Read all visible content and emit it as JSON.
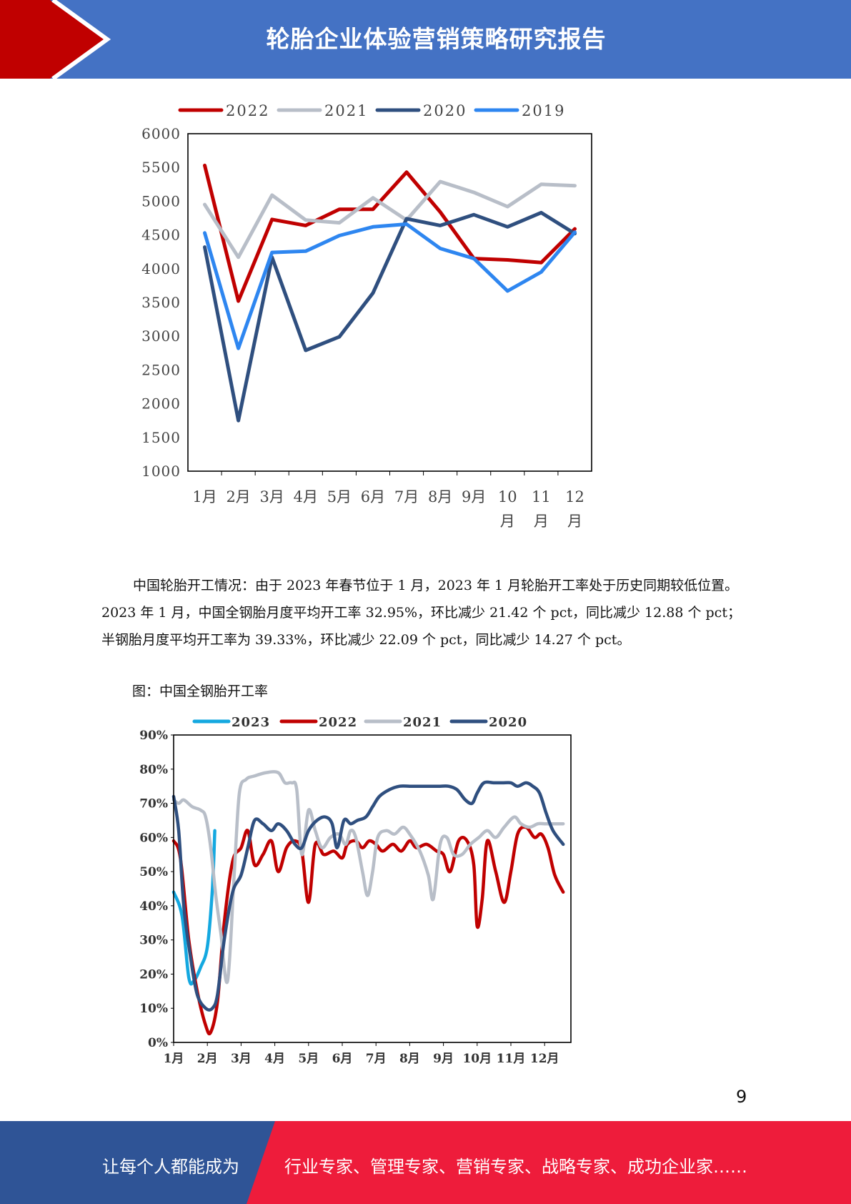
{
  "header": {
    "title": "轮胎企业体验营销策略研究报告"
  },
  "chart_data": [
    {
      "type": "line",
      "categories": [
        "1月",
        "2月",
        "3月",
        "4月",
        "5月",
        "6月",
        "7月",
        "8月",
        "9月",
        "10月",
        "11月",
        "12月"
      ],
      "ylim": [
        1000,
        6000
      ],
      "yticks": [
        "6000",
        "5500",
        "5000",
        "4500",
        "4000",
        "3500",
        "3000",
        "2500",
        "2000",
        "1500",
        "1000"
      ],
      "legend_position": "top",
      "series": [
        {
          "name": "2022",
          "color": "#c00000",
          "values": [
            5530,
            3520,
            4730,
            4640,
            4880,
            4880,
            5430,
            4840,
            4150,
            4130,
            4090,
            4590
          ]
        },
        {
          "name": "2021",
          "color": "#b8bec8",
          "values": [
            4950,
            4170,
            5090,
            4720,
            4680,
            5050,
            4720,
            5290,
            5130,
            4920,
            5250,
            5230
          ]
        },
        {
          "name": "2020",
          "color": "#2f4f7f",
          "values": [
            4320,
            1750,
            4170,
            2790,
            2990,
            3640,
            4740,
            4640,
            4800,
            4620,
            4830,
            4520
          ]
        },
        {
          "name": "2019",
          "color": "#2e86f0",
          "values": [
            4530,
            2820,
            4240,
            4260,
            4490,
            4620,
            4660,
            4300,
            4150,
            3670,
            3950,
            4540
          ]
        }
      ]
    },
    {
      "type": "line",
      "categories": [
        "1月",
        "2月",
        "3月",
        "4月",
        "5月",
        "6月",
        "7月",
        "8月",
        "9月",
        "10月",
        "11月",
        "12月"
      ],
      "ylim": [
        0,
        90
      ],
      "yticks": [
        "90%",
        "80%",
        "70%",
        "60%",
        "50%",
        "40%",
        "30%",
        "20%",
        "10%",
        "0%"
      ],
      "legend_position": "top",
      "series": [
        {
          "name": "2023",
          "color": "#14a8e0",
          "points": [
            [
              0,
              44
            ],
            [
              0.25,
              37
            ],
            [
              0.45,
              19
            ],
            [
              0.6,
              18
            ],
            [
              0.8,
              22
            ],
            [
              1.0,
              28
            ],
            [
              1.15,
              45
            ],
            [
              1.22,
              62
            ]
          ]
        },
        {
          "name": "2022",
          "color": "#c00000",
          "points": [
            [
              0,
              59
            ],
            [
              0.2,
              54
            ],
            [
              0.45,
              30
            ],
            [
              0.7,
              15
            ],
            [
              0.95,
              5
            ],
            [
              1.1,
              3
            ],
            [
              1.3,
              12
            ],
            [
              1.5,
              35
            ],
            [
              1.75,
              53
            ],
            [
              2.0,
              57
            ],
            [
              2.2,
              62
            ],
            [
              2.4,
              52
            ],
            [
              2.65,
              55
            ],
            [
              2.9,
              59
            ],
            [
              3.1,
              50
            ],
            [
              3.35,
              57
            ],
            [
              3.6,
              59
            ],
            [
              3.8,
              56
            ],
            [
              4.0,
              41
            ],
            [
              4.2,
              58
            ],
            [
              4.45,
              55
            ],
            [
              4.75,
              56
            ],
            [
              5.0,
              54
            ],
            [
              5.15,
              58
            ],
            [
              5.4,
              59
            ],
            [
              5.6,
              57
            ],
            [
              5.8,
              59
            ],
            [
              6.0,
              58
            ],
            [
              6.2,
              56
            ],
            [
              6.5,
              58
            ],
            [
              6.75,
              56
            ],
            [
              7.0,
              59
            ],
            [
              7.2,
              57
            ],
            [
              7.5,
              58
            ],
            [
              7.8,
              56
            ],
            [
              8.0,
              55
            ],
            [
              8.2,
              50
            ],
            [
              8.45,
              59
            ],
            [
              8.7,
              59
            ],
            [
              8.9,
              52
            ],
            [
              9.0,
              34
            ],
            [
              9.15,
              42
            ],
            [
              9.3,
              59
            ],
            [
              9.55,
              50
            ],
            [
              9.8,
              41
            ],
            [
              10.0,
              50
            ],
            [
              10.2,
              61
            ],
            [
              10.45,
              63
            ],
            [
              10.7,
              60
            ],
            [
              10.9,
              61
            ],
            [
              11.1,
              57
            ],
            [
              11.3,
              49
            ],
            [
              11.55,
              44
            ]
          ]
        },
        {
          "name": "2021",
          "color": "#b8bec8",
          "points": [
            [
              0,
              71
            ],
            [
              0.15,
              70
            ],
            [
              0.3,
              71
            ],
            [
              0.55,
              69
            ],
            [
              0.8,
              68
            ],
            [
              0.95,
              66
            ],
            [
              1.1,
              57
            ],
            [
              1.25,
              43
            ],
            [
              1.4,
              32
            ],
            [
              1.6,
              18
            ],
            [
              1.8,
              50
            ],
            [
              1.95,
              73
            ],
            [
              2.15,
              77
            ],
            [
              2.4,
              78
            ],
            [
              2.75,
              79
            ],
            [
              3.1,
              79
            ],
            [
              3.3,
              76
            ],
            [
              3.5,
              76
            ],
            [
              3.65,
              74
            ],
            [
              3.8,
              55
            ],
            [
              4.0,
              68
            ],
            [
              4.2,
              62
            ],
            [
              4.4,
              57
            ],
            [
              4.65,
              60
            ],
            [
              4.9,
              61
            ],
            [
              5.1,
              58
            ],
            [
              5.25,
              62
            ],
            [
              5.4,
              60
            ],
            [
              5.6,
              50
            ],
            [
              5.75,
              43
            ],
            [
              5.9,
              50
            ],
            [
              6.05,
              60
            ],
            [
              6.3,
              62
            ],
            [
              6.55,
              61
            ],
            [
              6.8,
              63
            ],
            [
              7.0,
              61
            ],
            [
              7.3,
              56
            ],
            [
              7.55,
              49
            ],
            [
              7.7,
              42
            ],
            [
              7.9,
              58
            ],
            [
              8.1,
              60
            ],
            [
              8.3,
              55
            ],
            [
              8.55,
              55
            ],
            [
              8.8,
              58
            ],
            [
              9.05,
              60
            ],
            [
              9.3,
              62
            ],
            [
              9.55,
              60
            ],
            [
              9.8,
              63
            ],
            [
              10.1,
              66
            ],
            [
              10.3,
              64
            ],
            [
              10.55,
              63
            ],
            [
              10.8,
              64
            ],
            [
              11.0,
              64
            ],
            [
              11.3,
              64
            ],
            [
              11.55,
              64
            ]
          ]
        },
        {
          "name": "2020",
          "color": "#2f4f7f",
          "points": [
            [
              0,
              72
            ],
            [
              0.15,
              62
            ],
            [
              0.3,
              40
            ],
            [
              0.5,
              25
            ],
            [
              0.7,
              14
            ],
            [
              0.95,
              10
            ],
            [
              1.15,
              10
            ],
            [
              1.3,
              14
            ],
            [
              1.5,
              30
            ],
            [
              1.75,
              44
            ],
            [
              2.0,
              49
            ],
            [
              2.2,
              57
            ],
            [
              2.4,
              65
            ],
            [
              2.65,
              64
            ],
            [
              2.9,
              62
            ],
            [
              3.1,
              64
            ],
            [
              3.35,
              62
            ],
            [
              3.6,
              58
            ],
            [
              3.8,
              57
            ],
            [
              4.0,
              62
            ],
            [
              4.25,
              65
            ],
            [
              4.5,
              66
            ],
            [
              4.7,
              64
            ],
            [
              4.85,
              57
            ],
            [
              5.05,
              65
            ],
            [
              5.25,
              64
            ],
            [
              5.45,
              65
            ],
            [
              5.7,
              66
            ],
            [
              5.9,
              69
            ],
            [
              6.1,
              72
            ],
            [
              6.4,
              74
            ],
            [
              6.7,
              75
            ],
            [
              7.0,
              75
            ],
            [
              7.3,
              75
            ],
            [
              7.6,
              75
            ],
            [
              7.9,
              75
            ],
            [
              8.15,
              75
            ],
            [
              8.4,
              74
            ],
            [
              8.65,
              71
            ],
            [
              8.85,
              70
            ],
            [
              9.0,
              73
            ],
            [
              9.2,
              76
            ],
            [
              9.5,
              76
            ],
            [
              9.75,
              76
            ],
            [
              10.0,
              76
            ],
            [
              10.2,
              75
            ],
            [
              10.45,
              76
            ],
            [
              10.65,
              75
            ],
            [
              10.85,
              73
            ],
            [
              11.05,
              67
            ],
            [
              11.25,
              62
            ],
            [
              11.55,
              58
            ]
          ]
        }
      ]
    }
  ],
  "paragraph": "中国轮胎开工情况：由于 2023 年春节位于 1 月，2023 年 1 月轮胎开工率处于历史同期较低位置。2023 年 1 月，中国全钢胎月度平均开工率 32.95%，环比减少 21.42 个 pct，同比减少 12.88 个 pct；半钢胎月度平均开工率为 39.33%，环比减少 22.09 个 pct，同比减少 14.27 个 pct。",
  "caption": "图：中国全钢胎开工率",
  "page_number": "9",
  "footer": {
    "slogan_left": "让每个人都能成为",
    "slogan_right": "行业专家、管理专家、营销专家、战略专家、成功企业家……"
  },
  "colors": {
    "header_blue": "#4472c4",
    "accent_red": "#c00000",
    "footer_navy": "#2f5496",
    "footer_red": "#ee1c3b"
  }
}
